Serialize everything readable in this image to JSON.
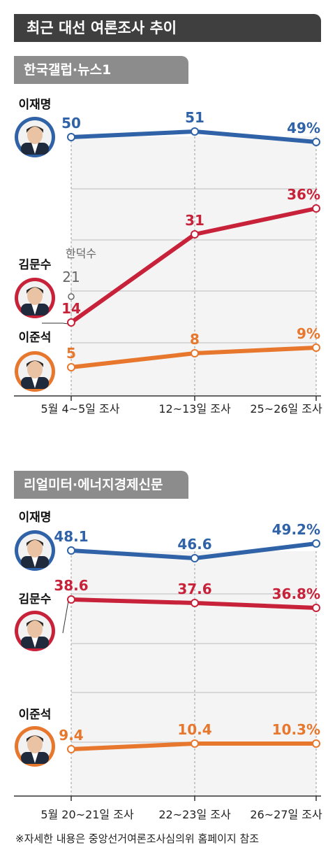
{
  "title": "최근 대선 여론조사 추이",
  "footnote": "※자세한 내용은 중앙선거여론조사심의위 홈페이지 참조",
  "colors": {
    "blue": "#2f62a6",
    "red": "#c8223a",
    "orange": "#e8772e",
    "gray": "#8c8c8c"
  },
  "chart_data": [
    {
      "type": "line",
      "source": "한국갤럽·뉴스1",
      "categories": [
        "5월 4~5일 조사",
        "12~13일 조사",
        "25~26일 조사"
      ],
      "ylim": [
        0,
        55
      ],
      "series": [
        {
          "name": "이재명",
          "color": "#2f62a6",
          "values": [
            50,
            51,
            49
          ],
          "labels": [
            "50",
            "51",
            "49%"
          ]
        },
        {
          "name": "김문수",
          "color": "#c8223a",
          "values": [
            14,
            31,
            36
          ],
          "labels": [
            "14",
            "31",
            "36%"
          ]
        },
        {
          "name": "이준석",
          "color": "#e8772e",
          "values": [
            5,
            8,
            9
          ],
          "labels": [
            "5",
            "8",
            "9%"
          ]
        }
      ],
      "extra_point": {
        "name": "한덕수",
        "value": 21,
        "label": "21",
        "category_index": 0
      }
    },
    {
      "type": "line",
      "source": "리얼미터·에너지경제신문",
      "categories": [
        "5월 20~21일 조사",
        "22~23일 조사",
        "26~27일 조사"
      ],
      "ylim": [
        0,
        55
      ],
      "series": [
        {
          "name": "이재명",
          "color": "#2f62a6",
          "values": [
            48.1,
            46.6,
            49.2
          ],
          "labels": [
            "48.1",
            "46.6",
            "49.2%"
          ]
        },
        {
          "name": "김문수",
          "color": "#c8223a",
          "values": [
            38.6,
            37.6,
            36.8
          ],
          "labels": [
            "38.6",
            "37.6",
            "36.8%"
          ]
        },
        {
          "name": "이준석",
          "color": "#e8772e",
          "values": [
            9.4,
            10.4,
            10.3
          ],
          "labels": [
            "9.4",
            "10.4",
            "10.3%"
          ]
        }
      ]
    }
  ]
}
